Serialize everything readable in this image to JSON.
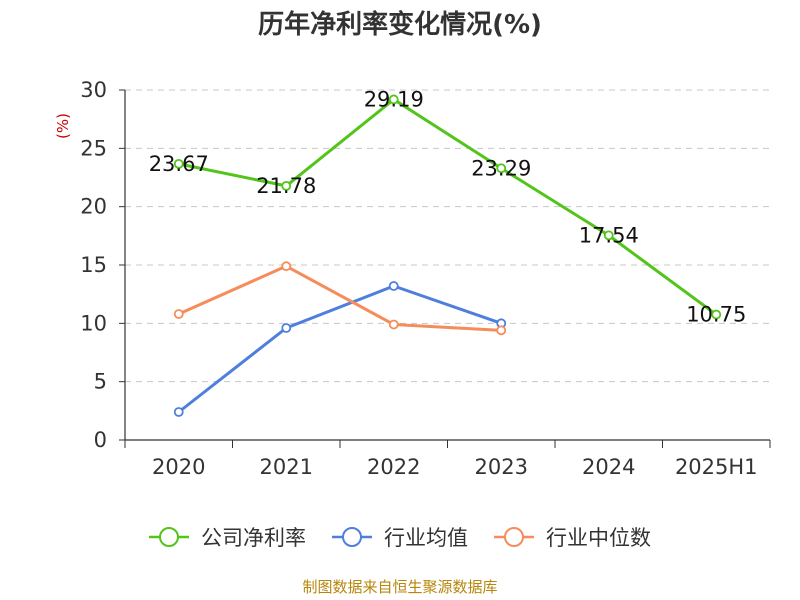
{
  "chart_data": {
    "type": "line",
    "title": "历年净利率变化情况(%)",
    "ylabel": "(%)",
    "xlabel": "",
    "categories": [
      "2020",
      "2021",
      "2022",
      "2023",
      "2024",
      "2025H1"
    ],
    "ylim": [
      0,
      30
    ],
    "yticks": [
      0,
      5,
      10,
      15,
      20,
      25,
      30
    ],
    "grid": true,
    "legend_position": "bottom",
    "series": [
      {
        "name": "公司净利率",
        "color": "#52c41a",
        "values": [
          23.67,
          21.78,
          29.19,
          23.29,
          17.54,
          10.75
        ],
        "labels": [
          "23.67",
          "21.78",
          "29.19",
          "23.29",
          "17.54",
          "10.75"
        ]
      },
      {
        "name": "行业均值",
        "color": "#4e7fdc",
        "values": [
          2.4,
          9.6,
          13.2,
          10.0,
          null,
          null
        ]
      },
      {
        "name": "行业中位数",
        "color": "#f58c5a",
        "values": [
          10.8,
          14.9,
          9.9,
          9.4,
          null,
          null
        ]
      }
    ]
  },
  "source": "制图数据来自恒生聚源数据库"
}
